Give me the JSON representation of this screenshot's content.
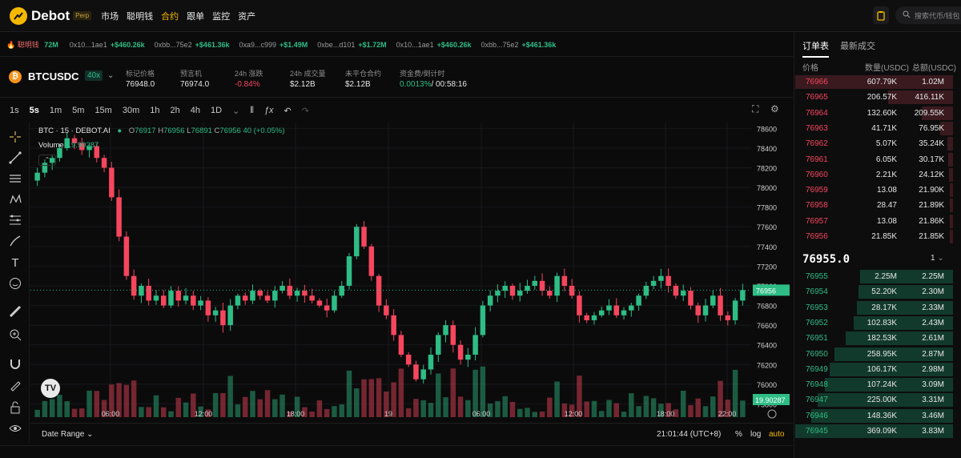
{
  "header": {
    "brand": "Debot",
    "badge": "Perp",
    "nav": [
      "市场",
      "聪明钱",
      "合约",
      "跟单",
      "监控",
      "资产"
    ],
    "active_nav": "合约",
    "search_placeholder": "搜索代币/钱包"
  },
  "ticker": {
    "lead_label": "聪明钱",
    "lead_value": "72M",
    "items": [
      {
        "addr": "0x10...1ae1",
        "amount": "+$460.26k"
      },
      {
        "addr": "0xbb...75e2",
        "amount": "+$461.36k"
      },
      {
        "addr": "0xa9...c999",
        "amount": "+$1.49M"
      },
      {
        "addr": "0xbe...d101",
        "amount": "+$1.72M"
      },
      {
        "addr": "0x10...1ae1",
        "amount": "+$460.26k"
      },
      {
        "addr": "0xbb...75e2",
        "amount": "+$461.36k"
      }
    ]
  },
  "instrument": {
    "pair": "BTCUSDC",
    "leverage": "40x",
    "stats": [
      {
        "label": "标记价格",
        "value": "76948.0",
        "tone": ""
      },
      {
        "label": "预言机",
        "value": "76974.0",
        "tone": ""
      },
      {
        "label": "24h 涨跌",
        "value": "-0.84%",
        "tone": "red"
      },
      {
        "label": "24h 成交量",
        "value": "$2.12B",
        "tone": ""
      },
      {
        "label": "未平仓合约",
        "value": "$2.12B",
        "tone": ""
      },
      {
        "label": "资金费/倒计时",
        "value": "0.0013%",
        "value2": "/ 00:58:16",
        "tone": "green"
      }
    ]
  },
  "timeframes": [
    "1s",
    "5s",
    "1m",
    "5m",
    "15m",
    "30m",
    "1h",
    "2h",
    "4h",
    "1D"
  ],
  "selected_timeframe": "5s",
  "chart_data": {
    "type": "candlestick",
    "symbol_label": "BTC · 15 · DEBOT.AI",
    "ohlc": {
      "O": "76917",
      "H": "76956",
      "L": "76891",
      "C": "76956",
      "change": "40 (+0.05%)"
    },
    "volume_label": "Volume",
    "volume_value": "19.90287",
    "y_ticks": [
      78600,
      78400,
      78200,
      78000,
      77800,
      77600,
      77400,
      77200,
      77000,
      76800,
      76600,
      76400,
      76200,
      76000,
      75800
    ],
    "ylim": [
      75730,
      78660
    ],
    "x_ticks": [
      "06:00",
      "12:00",
      "18:00",
      "19",
      "06:00",
      "12:00",
      "18:00",
      "22:00"
    ],
    "current_price": "76956",
    "current_price_value": 76956,
    "current_volume": "19.90287",
    "up_color": "#2ebd85",
    "down_color": "#f6465d",
    "closes": [
      78150,
      78250,
      78300,
      78400,
      78500,
      78450,
      78380,
      78420,
      78300,
      78200,
      77900,
      77500,
      77100,
      76900,
      77000,
      76850,
      76900,
      76800,
      76950,
      76850,
      76900,
      76800,
      76850,
      76700,
      76750,
      76600,
      76800,
      76900,
      76850,
      76950,
      76900,
      76850,
      76950,
      77000,
      76900,
      76950,
      76900,
      76850,
      76800,
      76750,
      76900,
      77000,
      77300,
      77600,
      77400,
      77100,
      76800,
      76700,
      76500,
      76300,
      76200,
      76050,
      76150,
      76300,
      76500,
      76600,
      76400,
      76250,
      76300,
      76500,
      76800,
      76900,
      76950,
      77000,
      76900,
      76950,
      77000,
      77050,
      76950,
      76900,
      77100,
      77000,
      76900,
      76700,
      76650,
      76700,
      76750,
      76800,
      76700,
      76750,
      76800,
      76900,
      77000,
      77050,
      77100,
      77000,
      76900,
      76950,
      76800,
      76700,
      76800,
      76900,
      76700,
      76650,
      76850,
      76956
    ]
  },
  "chart_footer": {
    "date_range": "Date Range",
    "time": "21:01:44 (UTC+8)",
    "pct": "%",
    "log": "log",
    "auto": "auto"
  },
  "orderbook": {
    "tabs": [
      "订单表",
      "最新成交"
    ],
    "active_tab": "订单表",
    "headers": [
      "价格",
      "数量(USDC)",
      "总额(USDC)"
    ],
    "asks": [
      {
        "price": "76966",
        "size": "607.79K",
        "total": "1.02M",
        "depth": 1.0
      },
      {
        "price": "76965",
        "size": "206.57K",
        "total": "416.11K",
        "depth": 0.41
      },
      {
        "price": "76964",
        "size": "132.60K",
        "total": "209.55K",
        "depth": 0.2
      },
      {
        "price": "76963",
        "size": "41.71K",
        "total": "76.95K",
        "depth": 0.08
      },
      {
        "price": "76962",
        "size": "5.07K",
        "total": "35.24K",
        "depth": 0.035
      },
      {
        "price": "76961",
        "size": "6.05K",
        "total": "30.17K",
        "depth": 0.03
      },
      {
        "price": "76960",
        "size": "2.21K",
        "total": "24.12K",
        "depth": 0.024
      },
      {
        "price": "76959",
        "size": "13.08",
        "total": "21.90K",
        "depth": 0.022
      },
      {
        "price": "76958",
        "size": "28.47",
        "total": "21.89K",
        "depth": 0.021
      },
      {
        "price": "76957",
        "size": "13.08",
        "total": "21.86K",
        "depth": 0.021
      },
      {
        "price": "76956",
        "size": "21.85K",
        "total": "21.85K",
        "depth": 0.021
      }
    ],
    "mid_price": "76955.0",
    "grouping": "1",
    "bids": [
      {
        "price": "76955",
        "size": "2.25M",
        "total": "2.25M",
        "depth": 0.59
      },
      {
        "price": "76954",
        "size": "52.20K",
        "total": "2.30M",
        "depth": 0.6
      },
      {
        "price": "76953",
        "size": "28.17K",
        "total": "2.33M",
        "depth": 0.61
      },
      {
        "price": "76952",
        "size": "102.83K",
        "total": "2.43M",
        "depth": 0.63
      },
      {
        "price": "76951",
        "size": "182.53K",
        "total": "2.61M",
        "depth": 0.68
      },
      {
        "price": "76950",
        "size": "258.95K",
        "total": "2.87M",
        "depth": 0.75
      },
      {
        "price": "76949",
        "size": "106.17K",
        "total": "2.98M",
        "depth": 0.78
      },
      {
        "price": "76948",
        "size": "107.24K",
        "total": "3.09M",
        "depth": 0.81
      },
      {
        "price": "76947",
        "size": "225.00K",
        "total": "3.31M",
        "depth": 0.86
      },
      {
        "price": "76946",
        "size": "148.36K",
        "total": "3.46M",
        "depth": 0.9
      },
      {
        "price": "76945",
        "size": "369.09K",
        "total": "3.83M",
        "depth": 1.0
      }
    ]
  }
}
